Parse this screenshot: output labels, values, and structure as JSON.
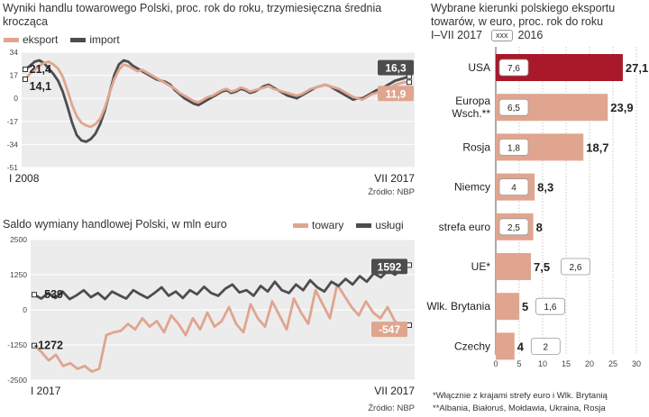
{
  "colors": {
    "eksport": "#e0a58f",
    "import": "#4d4d4d",
    "usa": "#a8192a",
    "bar": "#e0a58f",
    "panel": "#ececec"
  },
  "top_chart": {
    "title_line1": "Wyniki handlu towarowego Polski, proc. rok do roku, trzymiesięczna średnia",
    "title_line2": "krocząca",
    "legend": {
      "eksport": "eksport",
      "import": "import"
    },
    "start_label": "I 2008",
    "end_label": "VII 2017",
    "source": "Źródło: NBP",
    "left_labels": {
      "import": "21,4",
      "eksport": "14,1"
    },
    "right_labels": {
      "import": "16,3",
      "eksport": "11,9"
    }
  },
  "bottom_chart": {
    "title": "Saldo wymiany handlowej Polski, w mln euro",
    "legend": {
      "towary": "towary",
      "uslugi": "usługi"
    },
    "start_label": "I 2017",
    "end_label": "VII 2017",
    "source": "Źródło: NBP",
    "left_labels": {
      "uslugi": "539",
      "towary": "-1272"
    },
    "right_labels": {
      "uslugi": "1592",
      "towary": "-547"
    }
  },
  "right_chart": {
    "title_line1": "Wybrane kierunki polskiego eksportu",
    "title_line2": "towarów, w euro, proc. rok do roku",
    "title_line3": "I–VII 2017",
    "legend_box": "xxx",
    "legend_year": "2016",
    "footnote1": "*Włącznie z krajami strefy euro i Wlk. Brytanią",
    "footnote2": "**Albania, Białoruś, Mołdawia, Ukraina, Rosja"
  },
  "chart_data": [
    {
      "type": "line",
      "title": "Wyniki handlu towarowego Polski, proc. rok do roku, trzymiesięczna średnia krocząca",
      "ylim": [
        -51,
        34
      ],
      "yticks": [
        34,
        17,
        0,
        -17,
        -34,
        -51
      ],
      "x_range": [
        "I 2008",
        "VII 2017"
      ],
      "series": [
        {
          "name": "eksport",
          "values": [
            14.1,
            18,
            21,
            24,
            26,
            27,
            25,
            22,
            16,
            6,
            -5,
            -13,
            -18,
            -20,
            -21,
            -19,
            -15,
            -7,
            4,
            14,
            21,
            25,
            24,
            22,
            20,
            21,
            19,
            17,
            15,
            13,
            11,
            9,
            7,
            4,
            2,
            0,
            -2,
            -3,
            -1,
            1,
            2,
            4,
            6,
            7,
            5,
            6,
            8,
            7,
            5,
            6,
            7,
            8,
            9,
            7,
            6,
            5,
            4,
            3,
            2,
            3,
            5,
            7,
            8,
            9,
            10,
            9,
            8,
            7,
            5,
            3,
            1,
            0,
            -1,
            1,
            3,
            4,
            6,
            7,
            8,
            10,
            11,
            12,
            11.9
          ]
        },
        {
          "name": "import",
          "values": [
            21.4,
            24,
            27,
            28,
            26,
            22,
            18,
            13,
            5,
            -6,
            -18,
            -27,
            -31,
            -32,
            -30,
            -26,
            -19,
            -9,
            4,
            17,
            25,
            28,
            27,
            24,
            22,
            20,
            18,
            16,
            14,
            13,
            12,
            10,
            6,
            3,
            0,
            -2,
            -4,
            -5,
            -3,
            -1,
            1,
            3,
            5,
            6,
            4,
            5,
            7,
            6,
            4,
            5,
            7,
            9,
            10,
            8,
            6,
            4,
            2,
            1,
            0,
            2,
            4,
            6,
            8,
            9,
            10,
            9,
            7,
            5,
            3,
            1,
            -1,
            0,
            0,
            2,
            4,
            6,
            7,
            9,
            11,
            13,
            14,
            15,
            16.3
          ]
        }
      ]
    },
    {
      "type": "line",
      "title": "Saldo wymiany handlowej Polski, w mln euro",
      "ylim": [
        -2500,
        2500
      ],
      "yticks": [
        2500,
        1250,
        0,
        -1250,
        -2500
      ],
      "x_range": [
        "I 2017",
        "VII 2017"
      ],
      "series": [
        {
          "name": "usługi",
          "values": [
            539,
            400,
            600,
            420,
            650,
            380,
            520,
            700,
            450,
            600,
            380,
            650,
            520,
            400,
            700,
            550,
            420,
            600,
            800,
            500,
            650,
            420,
            700,
            550,
            820,
            600,
            500,
            750,
            900,
            620,
            700,
            500,
            850,
            650,
            1000,
            700,
            600,
            900,
            700,
            1050,
            800,
            650,
            1000,
            850,
            1100,
            900,
            1200,
            1000,
            1300,
            1150,
            1400,
            1250,
            1500,
            1592
          ]
        },
        {
          "name": "towary",
          "values": [
            -1272,
            -1500,
            -1800,
            -1600,
            -2000,
            -1900,
            -2100,
            -2000,
            -2200,
            -2100,
            -900,
            -800,
            -750,
            -500,
            -700,
            -300,
            -600,
            -400,
            -800,
            -200,
            -500,
            -900,
            -300,
            -700,
            -100,
            -600,
            -400,
            100,
            -500,
            -800,
            200,
            -300,
            -600,
            300,
            -200,
            -700,
            400,
            -100,
            -500,
            700,
            200,
            -300,
            900,
            500,
            100,
            -200,
            300,
            -100,
            -300,
            100,
            -400,
            -600,
            -547
          ]
        }
      ]
    },
    {
      "type": "bar",
      "title": "Wybrane kierunki polskiego eksportu towarów, w euro, proc. rok do roku",
      "xlim": [
        0,
        30
      ],
      "xticks": [
        0,
        5,
        10,
        15,
        20,
        25,
        30
      ],
      "categories": [
        {
          "name": "USA",
          "value": 27.1,
          "value_label": "27,1",
          "prev_label": "7,6"
        },
        {
          "name": "Europa Wsch.**",
          "value": 23.9,
          "value_label": "23,9",
          "prev_label": "6,5"
        },
        {
          "name": "Rosja",
          "value": 18.7,
          "value_label": "18,7",
          "prev_label": "1,8"
        },
        {
          "name": "Niemcy",
          "value": 8.3,
          "value_label": "8,3",
          "prev_label": "4"
        },
        {
          "name": "strefa euro",
          "value": 8,
          "value_label": "8",
          "prev_label": "2,5"
        },
        {
          "name": "UE*",
          "value": 7.5,
          "value_label": "7,5",
          "prev_label": "2,6"
        },
        {
          "name": "Wlk. Brytania",
          "value": 5,
          "value_label": "5",
          "prev_label": "1,6"
        },
        {
          "name": "Czechy",
          "value": 4,
          "value_label": "4",
          "prev_label": "2"
        }
      ],
      "series": [
        {
          "name": "I–VII 2017",
          "values": [
            27.1,
            23.9,
            18.7,
            8.3,
            8,
            7.5,
            5,
            4
          ]
        },
        {
          "name": "2016",
          "values": [
            7.6,
            6.5,
            1.8,
            4,
            2.5,
            2.6,
            1.6,
            2
          ]
        }
      ]
    }
  ]
}
